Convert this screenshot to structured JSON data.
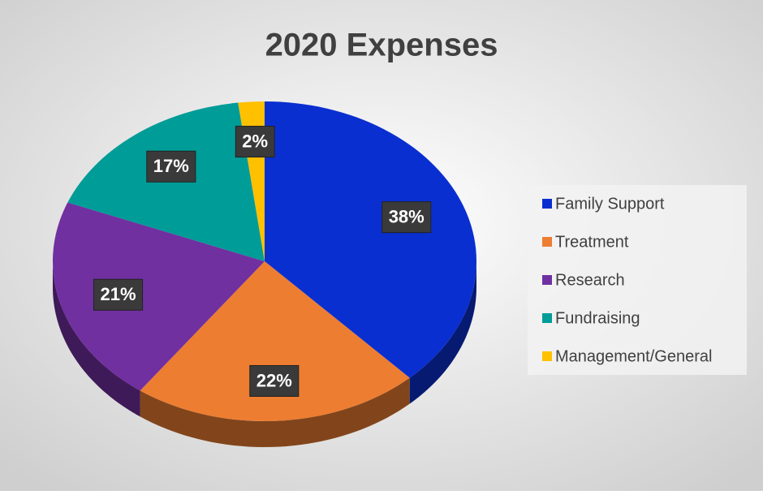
{
  "chart_data": {
    "type": "pie",
    "title": "2020 Expenses",
    "categories": [
      "Family Support",
      "Treatment",
      "Research",
      "Fundraising",
      "Management/General"
    ],
    "values": [
      38,
      22,
      21,
      17,
      2
    ],
    "value_labels": [
      "38%",
      "22%",
      "21%",
      "17%",
      "2%"
    ],
    "colors": [
      "#0a2fd0",
      "#ed7d31",
      "#7030a0",
      "#009c98",
      "#ffc000"
    ],
    "legend": "right"
  }
}
